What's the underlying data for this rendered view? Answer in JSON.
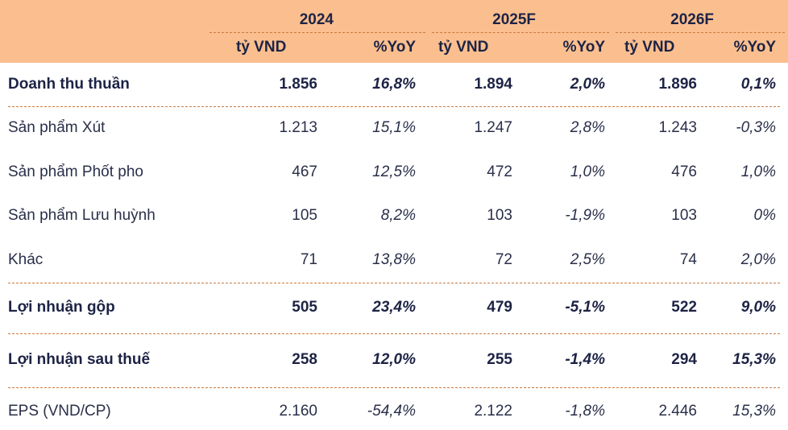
{
  "header": {
    "years": [
      "2024",
      "2025F",
      "2026F"
    ],
    "unit_label": "tỷ VND",
    "pct_label": "%YoY"
  },
  "rows": [
    {
      "label": "Doanh thu thuần",
      "style": "bold",
      "v2024": "1.856",
      "p2024": "16,8%",
      "v2025": "1.894",
      "p2025": "2,0%",
      "v2026": "1.896",
      "p2026": "0,1%"
    },
    {
      "label": "Sản phẩm Xút",
      "style": "regular",
      "v2024": "1.213",
      "p2024": "15,1%",
      "v2025": "1.247",
      "p2025": "2,8%",
      "v2026": "1.243",
      "p2026": "-0,3%"
    },
    {
      "label": "Sản phẩm Phốt pho",
      "style": "regular",
      "v2024": "467",
      "p2024": "12,5%",
      "v2025": "472",
      "p2025": "1,0%",
      "v2026": "476",
      "p2026": "1,0%"
    },
    {
      "label": "Sản phẩm Lưu huỳnh",
      "style": "regular",
      "v2024": "105",
      "p2024": "8,2%",
      "v2025": "103",
      "p2025": "-1,9%",
      "v2026": "103",
      "p2026": "0%"
    },
    {
      "label": "Khác",
      "style": "regular",
      "v2024": "71",
      "p2024": "13,8%",
      "v2025": "72",
      "p2025": "2,5%",
      "v2026": "74",
      "p2026": "2,0%"
    },
    {
      "label": "Lợi nhuận gộp",
      "style": "bold",
      "v2024": "505",
      "p2024": "23,4%",
      "v2025": "479",
      "p2025": "-5,1%",
      "v2026": "522",
      "p2026": "9,0%"
    },
    {
      "label": "Lợi nhuận sau thuế",
      "style": "bold",
      "v2024": "258",
      "p2024": "12,0%",
      "v2025": "255",
      "p2025": "-1,4%",
      "v2026": "294",
      "p2026": "15,3%"
    },
    {
      "label": "EPS (VND/CP)",
      "style": "regular",
      "v2024": "2.160",
      "p2024": "-54,4%",
      "v2025": "2.122",
      "p2025": "-1,8%",
      "v2026": "2.446",
      "p2026": "15,3%"
    }
  ],
  "colors": {
    "header_bg": "#fbbf8f",
    "text": "#1d2345",
    "separator": "#c9793e"
  }
}
